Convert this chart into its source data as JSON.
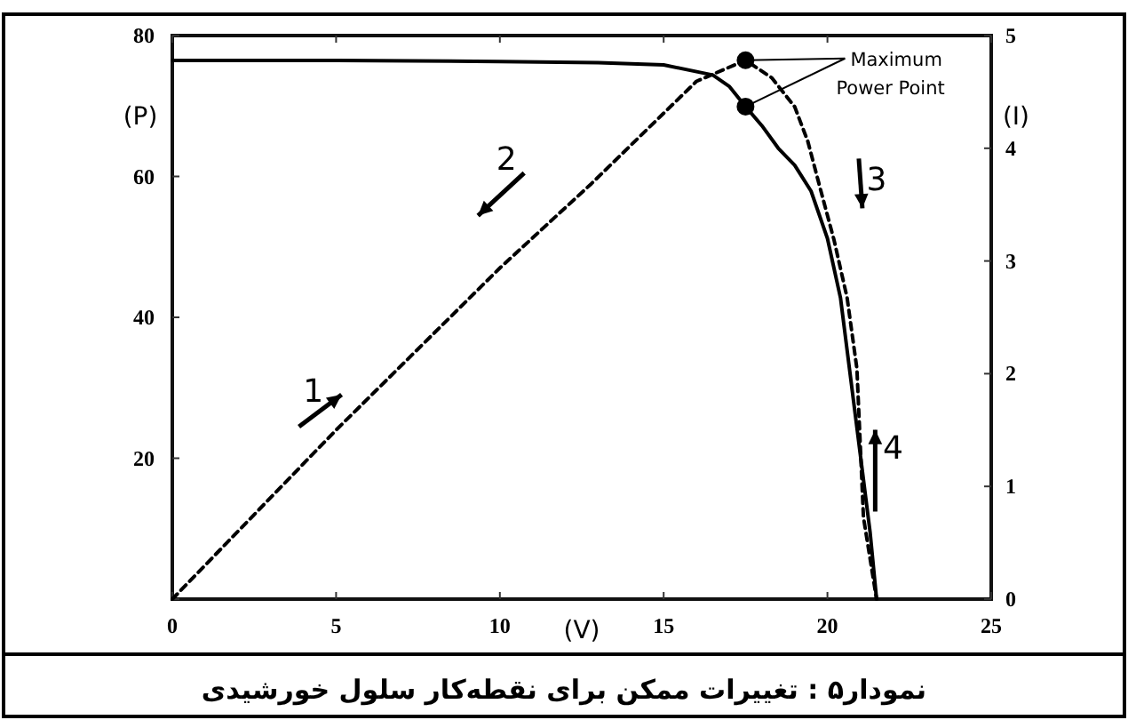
{
  "chart_data": {
    "type": "line",
    "series": [
      {
        "axis": "y",
        "line_style": "dashed",
        "color": "#000000",
        "x": [
          0,
          5,
          10,
          12.8,
          16,
          17.5,
          18.3,
          19,
          19.4,
          19.7,
          20.2,
          20.6,
          20.9,
          21.1,
          21.5
        ],
        "values": [
          0,
          24,
          47,
          59,
          73.5,
          76.5,
          74,
          69.9,
          65,
          59.7,
          51,
          42.8,
          32.7,
          11.6,
          0
        ]
      },
      {
        "axis": "y2",
        "line_style": "solid",
        "color": "#000000",
        "x": [
          0,
          5,
          10,
          13,
          15,
          16.5,
          17,
          17.5,
          18,
          18.5,
          19,
          19.5,
          20,
          20.4,
          20.9,
          21.3,
          21.5
        ],
        "values": [
          4.78,
          4.78,
          4.77,
          4.76,
          4.74,
          4.65,
          4.55,
          4.37,
          4.2,
          4.0,
          3.85,
          3.62,
          3.2,
          2.67,
          1.52,
          0.6,
          0
        ]
      },
      {
        "type": "scatter",
        "axis": "y",
        "marker": "circle",
        "color": "#000000",
        "x": [
          17.5
        ],
        "values": [
          76.5
        ]
      },
      {
        "type": "scatter",
        "axis": "y2",
        "marker": "circle",
        "color": "#000000",
        "x": [
          17.5
        ],
        "values": [
          4.37
        ]
      }
    ],
    "xlim": [
      0,
      25
    ],
    "xticks": [
      0,
      5,
      10,
      15,
      20,
      25
    ],
    "ylim": [
      0,
      80
    ],
    "yticks": [
      {
        "value": 0,
        "label": null
      },
      20,
      40,
      60,
      80
    ],
    "y2lim": [
      0,
      5
    ],
    "y2ticks": [
      0,
      1,
      2,
      3,
      4,
      5
    ],
    "xlabel": "(V)",
    "ylabel": "(P)",
    "y2label": "(I)",
    "annotations": [
      {
        "text": "Maximum Power Point",
        "x": 17.5,
        "y": 76.5
      },
      "1",
      "2",
      "3",
      "4",
      "نمودار۵ : تغییرات ممکن برای نقطه‌کار سلول خورشیدی"
    ]
  }
}
